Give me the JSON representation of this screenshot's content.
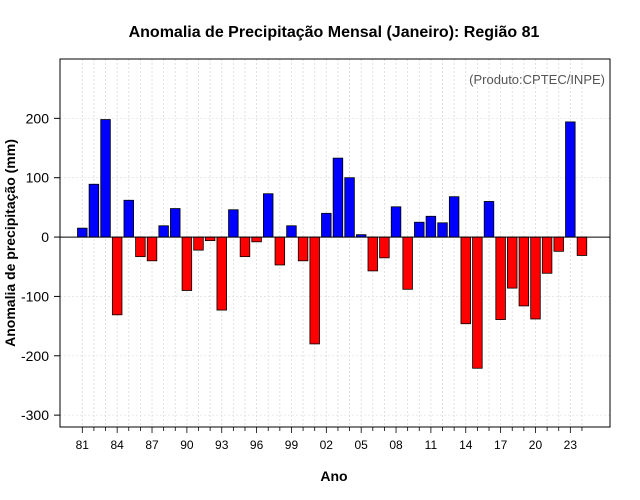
{
  "chart_data": {
    "type": "bar",
    "title": "Anomalia de Precipitação Mensal (Janeiro): Região 81",
    "xlabel": "Ano",
    "ylabel": "Anomalia de precipitação (mm)",
    "credit": "(Produto:CPTEC/INPE)",
    "ylim": [
      -320,
      300
    ],
    "yticks": [
      200,
      100,
      0,
      -100,
      -200,
      -300
    ],
    "ytick_labels": [
      "200",
      "100",
      "0",
      "-100",
      "-200",
      "-300"
    ],
    "grid": true,
    "years": [
      1981,
      1982,
      1983,
      1984,
      1985,
      1986,
      1987,
      1988,
      1989,
      1990,
      1991,
      1992,
      1993,
      1994,
      1995,
      1996,
      1997,
      1998,
      1999,
      2000,
      2001,
      2002,
      2003,
      2004,
      2005,
      2006,
      2007,
      2008,
      2009,
      2010,
      2011,
      2012,
      2013,
      2014,
      2015,
      2016,
      2017,
      2018,
      2019,
      2020,
      2021,
      2022,
      2023,
      2024
    ],
    "xtick_labels": [
      "81",
      "84",
      "87",
      "90",
      "93",
      "96",
      "99",
      "02",
      "05",
      "08",
      "11",
      "14",
      "17",
      "20",
      "23"
    ],
    "xtick_index": [
      0,
      3,
      6,
      9,
      12,
      15,
      18,
      21,
      24,
      27,
      30,
      33,
      36,
      39,
      42
    ],
    "values": [
      15,
      89,
      198,
      -131,
      62,
      -33,
      -40,
      19,
      48,
      -90,
      -22,
      -6,
      -123,
      46,
      -33,
      -8,
      73,
      -47,
      19,
      -40,
      -180,
      40,
      133,
      100,
      4,
      -57,
      -35,
      51,
      -88,
      25,
      35,
      24,
      68,
      -146,
      -221,
      60,
      -139,
      -86,
      -116,
      -138,
      -61,
      -24,
      194,
      -31
    ],
    "positive_color": "#0000ff",
    "negative_color": "#ff0000"
  }
}
